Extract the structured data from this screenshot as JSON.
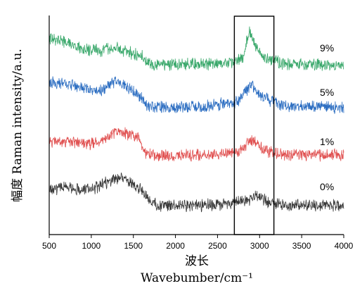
{
  "chart_data": {
    "type": "line",
    "xlabel_cn": "波长",
    "xlabel": "Wavebumber/cm⁻¹",
    "ylabel": "幅度   Raman  intensity/a.u.",
    "xlim": [
      500,
      4000
    ],
    "xticks": [
      500,
      1000,
      1500,
      2000,
      2500,
      3000,
      3500,
      4000
    ],
    "yticks_shown": false,
    "grid": false,
    "highlight_box_x": [
      2700,
      3170
    ],
    "series": [
      {
        "name": "0%",
        "color": "#3a3a3a",
        "offset": 0,
        "profile": [
          [
            500,
            0.55
          ],
          [
            700,
            0.65
          ],
          [
            900,
            0.55
          ],
          [
            1100,
            0.65
          ],
          [
            1300,
            0.95
          ],
          [
            1450,
            0.8
          ],
          [
            1600,
            0.55
          ],
          [
            1680,
            0.2
          ],
          [
            1800,
            0.05
          ],
          [
            2200,
            0.05
          ],
          [
            2600,
            0.08
          ],
          [
            2850,
            0.2
          ],
          [
            2960,
            0.35
          ],
          [
            3100,
            0.15
          ],
          [
            3300,
            0.05
          ],
          [
            4000,
            0.05
          ]
        ]
      },
      {
        "name": "1%",
        "color": "#e05050",
        "offset": 1,
        "profile": [
          [
            500,
            0.5
          ],
          [
            700,
            0.55
          ],
          [
            900,
            0.45
          ],
          [
            1100,
            0.5
          ],
          [
            1300,
            0.85
          ],
          [
            1450,
            0.75
          ],
          [
            1560,
            0.65
          ],
          [
            1640,
            0.15
          ],
          [
            1800,
            0.1
          ],
          [
            2400,
            0.12
          ],
          [
            2750,
            0.2
          ],
          [
            2900,
            0.6
          ],
          [
            3050,
            0.25
          ],
          [
            3300,
            0.12
          ],
          [
            4000,
            0.1
          ]
        ]
      },
      {
        "name": "5%",
        "color": "#2e6fc2",
        "offset": 2,
        "profile": [
          [
            500,
            0.85
          ],
          [
            700,
            0.8
          ],
          [
            900,
            0.65
          ],
          [
            1100,
            0.6
          ],
          [
            1300,
            0.9
          ],
          [
            1450,
            0.65
          ],
          [
            1560,
            0.45
          ],
          [
            1680,
            0.08
          ],
          [
            1800,
            0.05
          ],
          [
            2400,
            0.1
          ],
          [
            2750,
            0.25
          ],
          [
            2900,
            0.8
          ],
          [
            3050,
            0.35
          ],
          [
            3300,
            0.1
          ],
          [
            4000,
            0.05
          ]
        ]
      },
      {
        "name": "9%",
        "color": "#3aa86b",
        "offset": 3,
        "profile": [
          [
            500,
            0.9
          ],
          [
            700,
            0.8
          ],
          [
            900,
            0.55
          ],
          [
            1100,
            0.5
          ],
          [
            1300,
            0.6
          ],
          [
            1450,
            0.45
          ],
          [
            1600,
            0.35
          ],
          [
            1700,
            0.08
          ],
          [
            2200,
            0.08
          ],
          [
            2650,
            0.12
          ],
          [
            2800,
            0.3
          ],
          [
            2880,
            1.15
          ],
          [
            2950,
            0.7
          ],
          [
            3050,
            0.3
          ],
          [
            3300,
            0.1
          ],
          [
            4000,
            0.05
          ]
        ]
      }
    ]
  }
}
